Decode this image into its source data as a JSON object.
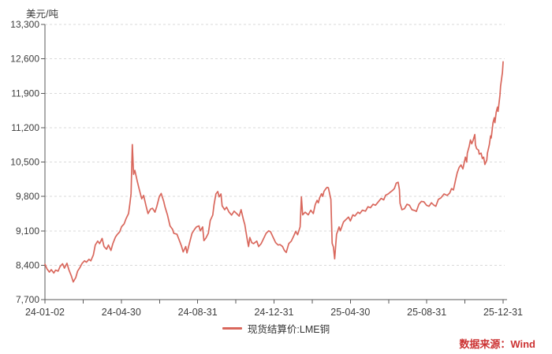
{
  "header": {
    "y_axis_title": "美元/吨"
  },
  "legend": {
    "series_label": "现货结算价:LME铜"
  },
  "source": {
    "label": "数据来源：Wind",
    "color": "#cc3333"
  },
  "colors": {
    "line": "#d9675c",
    "axis": "#595959",
    "tick_text": "#3d3d3d",
    "grid": "#d9d9d9",
    "background": "#ffffff"
  },
  "chart_data": {
    "type": "line",
    "title": "",
    "xlabel": "",
    "ylabel": "美元/吨",
    "ylim": [
      7700,
      13300
    ],
    "y_ticks": [
      13300,
      12600,
      11900,
      11200,
      10500,
      9800,
      9100,
      8400,
      7700
    ],
    "y_tick_labels": [
      "13,300",
      "12,600",
      "11,900",
      "11,200",
      "10,500",
      "9,800",
      "9,100",
      "8,400",
      "7,700"
    ],
    "x_range": [
      "2024-01-02",
      "2025-12-31"
    ],
    "x_tick_labels": [
      "24-01-02",
      "24-04-30",
      "24-08-31",
      "24-12-31",
      "25-04-30",
      "25-08-31",
      "25-12-31"
    ],
    "grid": "horizontal-dashed",
    "legend_position": "bottom-center",
    "series": [
      {
        "name": "现货结算价:LME铜",
        "points": [
          [
            "2024-01-02",
            8420
          ],
          [
            "2024-01-05",
            8330
          ],
          [
            "2024-01-09",
            8260
          ],
          [
            "2024-01-12",
            8310
          ],
          [
            "2024-01-16",
            8240
          ],
          [
            "2024-01-19",
            8300
          ],
          [
            "2024-01-23",
            8280
          ],
          [
            "2024-01-26",
            8370
          ],
          [
            "2024-01-30",
            8430
          ],
          [
            "2024-02-02",
            8340
          ],
          [
            "2024-02-06",
            8440
          ],
          [
            "2024-02-09",
            8310
          ],
          [
            "2024-02-13",
            8180
          ],
          [
            "2024-02-16",
            8060
          ],
          [
            "2024-02-20",
            8150
          ],
          [
            "2024-02-23",
            8280
          ],
          [
            "2024-02-27",
            8360
          ],
          [
            "2024-03-01",
            8435
          ],
          [
            "2024-03-05",
            8490
          ],
          [
            "2024-03-08",
            8460
          ],
          [
            "2024-03-12",
            8520
          ],
          [
            "2024-03-15",
            8490
          ],
          [
            "2024-03-19",
            8610
          ],
          [
            "2024-03-22",
            8810
          ],
          [
            "2024-03-26",
            8890
          ],
          [
            "2024-03-29",
            8840
          ],
          [
            "2024-04-02",
            8945
          ],
          [
            "2024-04-05",
            8780
          ],
          [
            "2024-04-09",
            8725
          ],
          [
            "2024-04-12",
            8810
          ],
          [
            "2024-04-16",
            8700
          ],
          [
            "2024-04-19",
            8840
          ],
          [
            "2024-04-23",
            8970
          ],
          [
            "2024-04-26",
            9025
          ],
          [
            "2024-04-30",
            9080
          ],
          [
            "2024-05-03",
            9185
          ],
          [
            "2024-05-07",
            9240
          ],
          [
            "2024-05-10",
            9345
          ],
          [
            "2024-05-14",
            9450
          ],
          [
            "2024-05-16",
            9640
          ],
          [
            "2024-05-18",
            9855
          ],
          [
            "2024-05-20",
            10857
          ],
          [
            "2024-05-22",
            10250
          ],
          [
            "2024-05-24",
            10330
          ],
          [
            "2024-05-28",
            10100
          ],
          [
            "2024-05-31",
            9950
          ],
          [
            "2024-06-04",
            9750
          ],
          [
            "2024-06-07",
            9820
          ],
          [
            "2024-06-11",
            9600
          ],
          [
            "2024-06-14",
            9450
          ],
          [
            "2024-06-18",
            9540
          ],
          [
            "2024-06-21",
            9560
          ],
          [
            "2024-06-25",
            9480
          ],
          [
            "2024-06-28",
            9600
          ],
          [
            "2024-07-02",
            9800
          ],
          [
            "2024-07-05",
            9860
          ],
          [
            "2024-07-09",
            9700
          ],
          [
            "2024-07-11",
            9590
          ],
          [
            "2024-07-15",
            9420
          ],
          [
            "2024-07-19",
            9200
          ],
          [
            "2024-07-23",
            9130
          ],
          [
            "2024-07-25",
            9050
          ],
          [
            "2024-07-30",
            9030
          ],
          [
            "2024-08-02",
            8930
          ],
          [
            "2024-08-06",
            8800
          ],
          [
            "2024-08-09",
            8670
          ],
          [
            "2024-08-13",
            8780
          ],
          [
            "2024-08-15",
            8650
          ],
          [
            "2024-08-20",
            8900
          ],
          [
            "2024-08-23",
            9050
          ],
          [
            "2024-08-27",
            9130
          ],
          [
            "2024-08-30",
            9180
          ],
          [
            "2024-09-03",
            9200
          ],
          [
            "2024-09-05",
            9100
          ],
          [
            "2024-09-09",
            9180
          ],
          [
            "2024-09-11",
            8900
          ],
          [
            "2024-09-14",
            8950
          ],
          [
            "2024-09-18",
            9050
          ],
          [
            "2024-09-21",
            9310
          ],
          [
            "2024-09-25",
            9420
          ],
          [
            "2024-09-27",
            9630
          ],
          [
            "2024-09-30",
            9850
          ],
          [
            "2024-10-03",
            9900
          ],
          [
            "2024-10-05",
            9790
          ],
          [
            "2024-10-08",
            9850
          ],
          [
            "2024-10-10",
            9610
          ],
          [
            "2024-10-14",
            9530
          ],
          [
            "2024-10-17",
            9580
          ],
          [
            "2024-10-21",
            9480
          ],
          [
            "2024-10-25",
            9420
          ],
          [
            "2024-10-29",
            9500
          ],
          [
            "2024-11-02",
            9450
          ],
          [
            "2024-11-06",
            9400
          ],
          [
            "2024-11-09",
            9530
          ],
          [
            "2024-11-13",
            9320
          ],
          [
            "2024-11-15",
            9230
          ],
          [
            "2024-11-19",
            8915
          ],
          [
            "2024-11-21",
            8780
          ],
          [
            "2024-11-23",
            8965
          ],
          [
            "2024-11-26",
            8860
          ],
          [
            "2024-11-29",
            8840
          ],
          [
            "2024-12-04",
            8890
          ],
          [
            "2024-12-07",
            8780
          ],
          [
            "2024-12-11",
            8840
          ],
          [
            "2024-12-16",
            8970
          ],
          [
            "2024-12-19",
            9050
          ],
          [
            "2024-12-23",
            9100
          ],
          [
            "2024-12-26",
            9080
          ],
          [
            "2024-12-30",
            8970
          ],
          [
            "2025-01-03",
            8860
          ],
          [
            "2025-01-07",
            8810
          ],
          [
            "2025-01-10",
            8820
          ],
          [
            "2025-01-14",
            8780
          ],
          [
            "2025-01-17",
            8700
          ],
          [
            "2025-01-20",
            8660
          ],
          [
            "2025-01-24",
            8840
          ],
          [
            "2025-01-28",
            8890
          ],
          [
            "2025-02-01",
            9000
          ],
          [
            "2025-02-04",
            9090
          ],
          [
            "2025-02-07",
            9020
          ],
          [
            "2025-02-11",
            9180
          ],
          [
            "2025-02-13",
            9790
          ],
          [
            "2025-02-15",
            9425
          ],
          [
            "2025-02-19",
            9480
          ],
          [
            "2025-02-24",
            9425
          ],
          [
            "2025-02-28",
            9520
          ],
          [
            "2025-03-04",
            9450
          ],
          [
            "2025-03-07",
            9630
          ],
          [
            "2025-03-10",
            9720
          ],
          [
            "2025-03-12",
            9670
          ],
          [
            "2025-03-14",
            9770
          ],
          [
            "2025-03-17",
            9855
          ],
          [
            "2025-03-19",
            9800
          ],
          [
            "2025-03-21",
            9905
          ],
          [
            "2025-03-24",
            9960
          ],
          [
            "2025-03-26",
            9985
          ],
          [
            "2025-03-28",
            9975
          ],
          [
            "2025-04-01",
            9740
          ],
          [
            "2025-04-03",
            8845
          ],
          [
            "2025-04-05",
            8770
          ],
          [
            "2025-04-07",
            8530
          ],
          [
            "2025-04-10",
            9030
          ],
          [
            "2025-04-14",
            9180
          ],
          [
            "2025-04-16",
            9100
          ],
          [
            "2025-04-21",
            9280
          ],
          [
            "2025-04-25",
            9330
          ],
          [
            "2025-04-29",
            9380
          ],
          [
            "2025-05-02",
            9300
          ],
          [
            "2025-05-06",
            9425
          ],
          [
            "2025-05-09",
            9400
          ],
          [
            "2025-05-14",
            9480
          ],
          [
            "2025-05-17",
            9450
          ],
          [
            "2025-05-21",
            9520
          ],
          [
            "2025-05-26",
            9500
          ],
          [
            "2025-05-30",
            9590
          ],
          [
            "2025-06-03",
            9570
          ],
          [
            "2025-06-07",
            9640
          ],
          [
            "2025-06-11",
            9620
          ],
          [
            "2025-06-16",
            9700
          ],
          [
            "2025-06-20",
            9760
          ],
          [
            "2025-06-24",
            9730
          ],
          [
            "2025-06-27",
            9825
          ],
          [
            "2025-07-01",
            9850
          ],
          [
            "2025-07-04",
            9880
          ],
          [
            "2025-07-08",
            9920
          ],
          [
            "2025-07-11",
            9960
          ],
          [
            "2025-07-14",
            10070
          ],
          [
            "2025-07-17",
            10090
          ],
          [
            "2025-07-19",
            9940
          ],
          [
            "2025-07-20",
            9660
          ],
          [
            "2025-07-23",
            9530
          ],
          [
            "2025-07-27",
            9550
          ],
          [
            "2025-07-31",
            9640
          ],
          [
            "2025-08-04",
            9620
          ],
          [
            "2025-08-08",
            9530
          ],
          [
            "2025-08-13",
            9510
          ],
          [
            "2025-08-15",
            9495
          ],
          [
            "2025-08-19",
            9640
          ],
          [
            "2025-08-23",
            9700
          ],
          [
            "2025-08-27",
            9690
          ],
          [
            "2025-08-31",
            9620
          ],
          [
            "2025-09-04",
            9600
          ],
          [
            "2025-09-08",
            9670
          ],
          [
            "2025-09-12",
            9620
          ],
          [
            "2025-09-15",
            9600
          ],
          [
            "2025-09-19",
            9740
          ],
          [
            "2025-09-23",
            9770
          ],
          [
            "2025-09-28",
            9850
          ],
          [
            "2025-10-03",
            9820
          ],
          [
            "2025-10-07",
            9870
          ],
          [
            "2025-10-10",
            9960
          ],
          [
            "2025-10-13",
            9930
          ],
          [
            "2025-10-17",
            10170
          ],
          [
            "2025-10-19",
            10280
          ],
          [
            "2025-10-22",
            10390
          ],
          [
            "2025-10-25",
            10440
          ],
          [
            "2025-10-28",
            10360
          ],
          [
            "2025-11-01",
            10600
          ],
          [
            "2025-11-03",
            10500
          ],
          [
            "2025-11-04",
            10680
          ],
          [
            "2025-11-07",
            10820
          ],
          [
            "2025-11-09",
            10950
          ],
          [
            "2025-11-11",
            10870
          ],
          [
            "2025-11-13",
            10930
          ],
          [
            "2025-11-16",
            11060
          ],
          [
            "2025-11-17",
            10850
          ],
          [
            "2025-11-19",
            10770
          ],
          [
            "2025-11-22",
            10740
          ],
          [
            "2025-11-23",
            10660
          ],
          [
            "2025-11-26",
            10680
          ],
          [
            "2025-11-28",
            10570
          ],
          [
            "2025-11-30",
            10600
          ],
          [
            "2025-12-02",
            10450
          ],
          [
            "2025-12-05",
            10540
          ],
          [
            "2025-12-06",
            10680
          ],
          [
            "2025-12-09",
            10850
          ],
          [
            "2025-12-11",
            11030
          ],
          [
            "2025-12-12",
            10990
          ],
          [
            "2025-12-15",
            11300
          ],
          [
            "2025-12-17",
            11400
          ],
          [
            "2025-12-18",
            11300
          ],
          [
            "2025-12-20",
            11510
          ],
          [
            "2025-12-22",
            11615
          ],
          [
            "2025-12-23",
            11530
          ],
          [
            "2025-12-25",
            11750
          ],
          [
            "2025-12-26",
            11860
          ],
          [
            "2025-12-27",
            12045
          ],
          [
            "2025-12-29",
            12235
          ],
          [
            "2025-12-30",
            12330
          ],
          [
            "2025-12-31",
            12540
          ]
        ]
      }
    ]
  }
}
